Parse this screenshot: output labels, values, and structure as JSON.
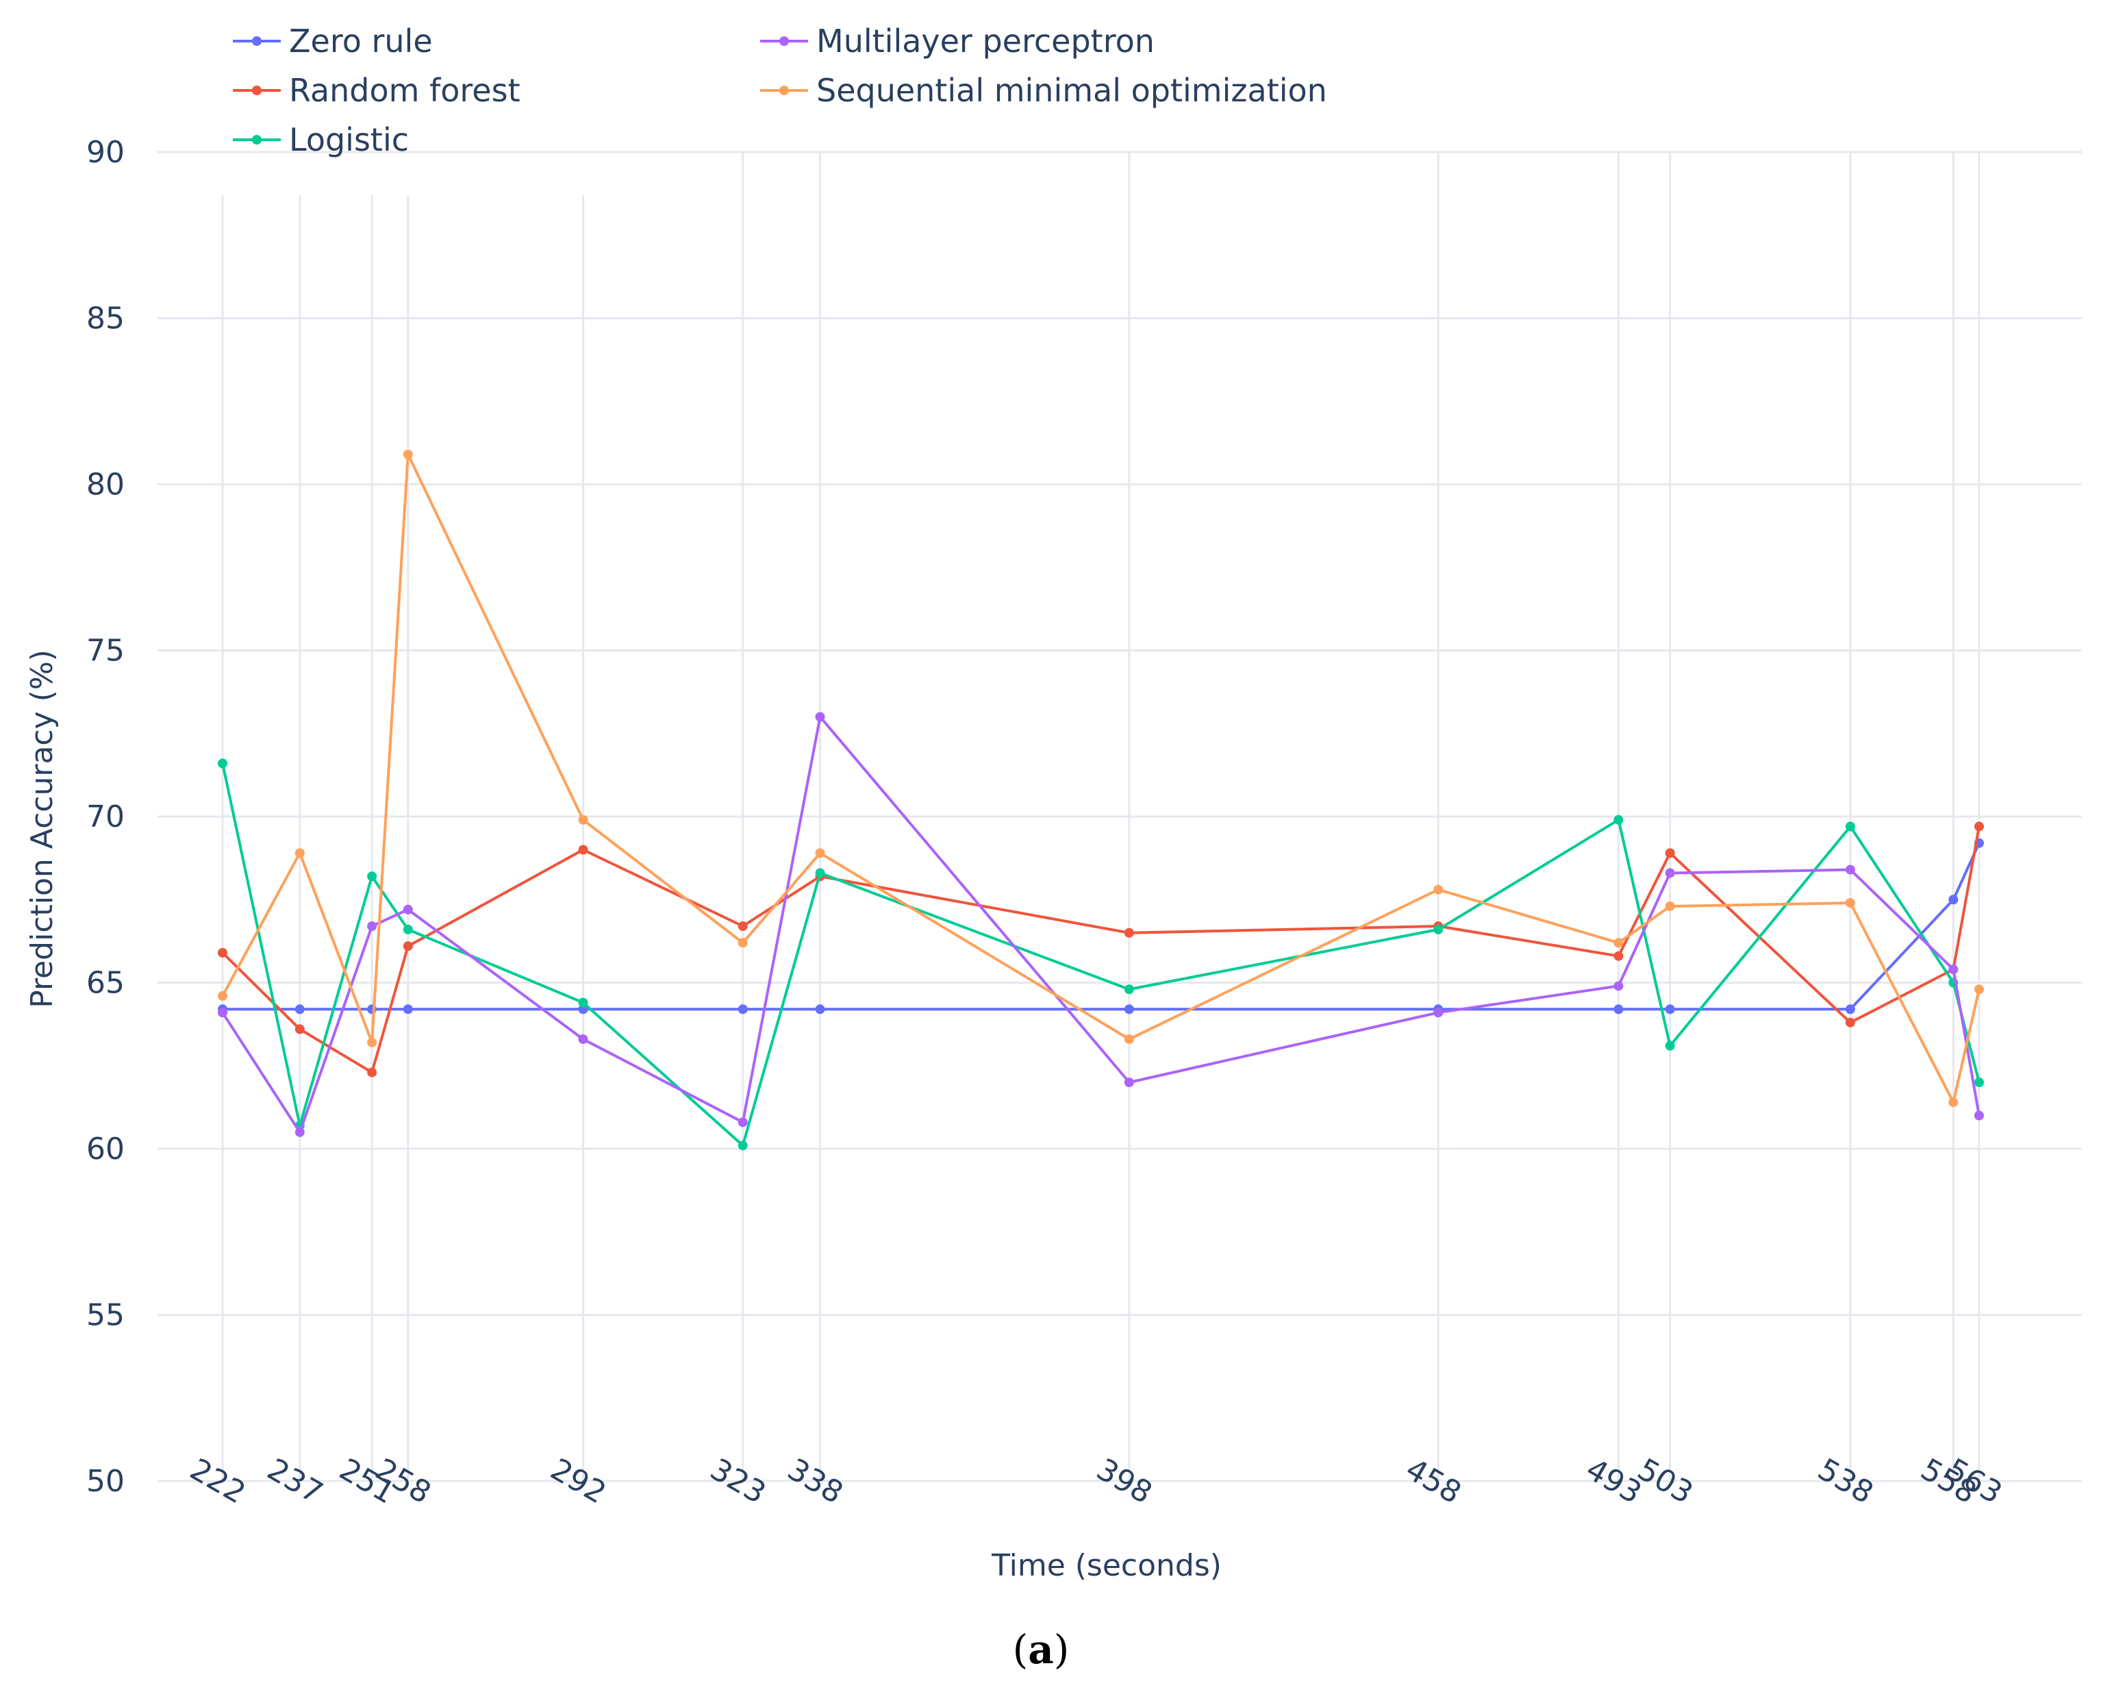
{
  "chart_data": {
    "type": "line",
    "title": "",
    "xlabel": "Time (seconds)",
    "ylabel": "Prediction Accuracy (%)",
    "ylim": [
      50,
      90
    ],
    "yticks": [
      50,
      55,
      60,
      65,
      70,
      75,
      80,
      85,
      90
    ],
    "x": [
      222,
      237,
      251,
      258,
      292,
      323,
      338,
      398,
      458,
      493,
      503,
      538,
      558,
      563
    ],
    "grid": true,
    "legend_position": "top-left",
    "series": [
      {
        "name": "Zero rule",
        "color": "#636efa",
        "values": [
          64.2,
          64.2,
          64.2,
          64.2,
          64.2,
          64.2,
          64.2,
          64.2,
          64.2,
          64.2,
          64.2,
          64.2,
          67.5,
          69.2
        ]
      },
      {
        "name": "Random forest",
        "color": "#ef553b",
        "values": [
          65.9,
          63.6,
          62.3,
          66.1,
          69.0,
          66.7,
          68.2,
          66.5,
          66.7,
          65.8,
          68.9,
          63.8,
          65.4,
          69.7
        ]
      },
      {
        "name": "Logistic",
        "color": "#00cc96",
        "values": [
          71.6,
          60.7,
          68.2,
          66.6,
          64.4,
          60.1,
          68.3,
          64.8,
          66.6,
          69.9,
          63.1,
          69.7,
          65.0,
          62.0
        ]
      },
      {
        "name": "Multilayer perceptron",
        "color": "#ab63fa",
        "values": [
          64.1,
          60.5,
          66.7,
          67.2,
          63.3,
          60.8,
          73.0,
          62.0,
          64.1,
          64.9,
          68.3,
          68.4,
          65.4,
          61.0
        ]
      },
      {
        "name": "Sequential minimal optimization",
        "color": "#ffa15a",
        "values": [
          64.6,
          68.9,
          63.2,
          80.9,
          69.9,
          66.2,
          68.9,
          63.3,
          67.8,
          66.2,
          67.3,
          67.4,
          61.4,
          64.8
        ]
      }
    ],
    "caption_prefix": "(",
    "caption_letter": "a",
    "caption_suffix": ")"
  }
}
